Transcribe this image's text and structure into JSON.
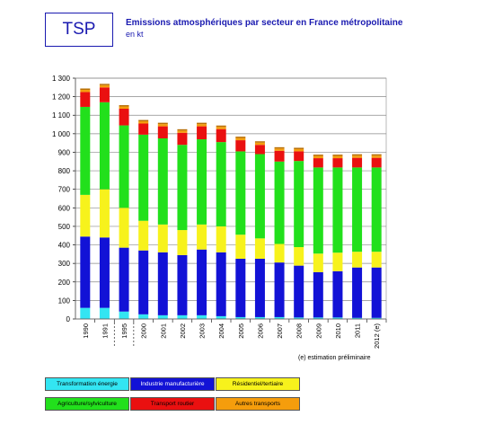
{
  "header": {
    "tsp_label": "TSP",
    "title": "Emissions atmosphériques par secteur en France métropolitaine",
    "subtitle": "en kt"
  },
  "note": "(e) estimation préliminaire",
  "colors": {
    "transformation": "#33e5f2",
    "industrie": "#1212d6",
    "residentiel": "#f7f21c",
    "agriculture": "#22e01c",
    "transport_routier": "#ea1010",
    "autres": "#f59d0c"
  },
  "legend": [
    {
      "label": "Transformation énergie",
      "color": "#33e5f2",
      "text_color": "#000000"
    },
    {
      "label": "Industrie manufacturière",
      "color": "#1212d6",
      "text_color": "#ffffff"
    },
    {
      "label": "Résidentiel/tertiaire",
      "color": "#f7f21c",
      "text_color": "#000000"
    },
    {
      "label": "Agriculture/sylviculture",
      "color": "#22e01c",
      "text_color": "#000000"
    },
    {
      "label": "Transport routier",
      "color": "#ea1010",
      "text_color": "#000000"
    },
    {
      "label": "Autres transports",
      "color": "#f59d0c",
      "text_color": "#000000"
    }
  ],
  "chart_data": {
    "type": "bar",
    "stacked": true,
    "categories": [
      "1990",
      "1991",
      "1995",
      "2000",
      "2001",
      "2002",
      "2003",
      "2004",
      "2005",
      "2006",
      "2007",
      "2008",
      "2009",
      "2010",
      "2011",
      "2012 (e)"
    ],
    "ylim": [
      0,
      1300
    ],
    "yticks": [
      0,
      100,
      200,
      300,
      400,
      500,
      600,
      700,
      800,
      900,
      1000,
      1100,
      1200,
      1300
    ],
    "ytick_labels": [
      "0",
      "100",
      "200",
      "300",
      "400",
      "500",
      "600",
      "700",
      "800",
      "900",
      "1 000",
      "1 100",
      "1 200",
      "1 300"
    ],
    "grid": true,
    "legend_position": "bottom",
    "series": [
      {
        "name": "Transformation énergie",
        "color": "#33e5f2",
        "values": [
          60,
          60,
          40,
          25,
          20,
          20,
          20,
          15,
          10,
          10,
          10,
          8,
          8,
          8,
          6,
          6
        ]
      },
      {
        "name": "Industrie manufacturière",
        "color": "#1212d6",
        "values": [
          385,
          380,
          345,
          345,
          340,
          325,
          355,
          345,
          315,
          315,
          295,
          280,
          245,
          250,
          272,
          272
        ]
      },
      {
        "name": "Résidentiel/tertiaire",
        "color": "#f7f21c",
        "values": [
          225,
          260,
          215,
          160,
          150,
          135,
          135,
          140,
          130,
          110,
          100,
          100,
          100,
          100,
          85,
          85
        ]
      },
      {
        "name": "Agriculture/sylviculture",
        "color": "#22e01c",
        "values": [
          475,
          470,
          445,
          465,
          465,
          460,
          460,
          455,
          450,
          455,
          445,
          465,
          465,
          460,
          455,
          455
        ]
      },
      {
        "name": "Transport routier",
        "color": "#ea1010",
        "values": [
          80,
          80,
          90,
          60,
          65,
          65,
          70,
          70,
          60,
          50,
          58,
          52,
          50,
          50,
          52,
          52
        ]
      },
      {
        "name": "Autres transports",
        "color": "#f59d0c",
        "values": [
          12,
          12,
          12,
          12,
          12,
          12,
          12,
          12,
          12,
          12,
          12,
          12,
          12,
          12,
          12,
          12
        ]
      }
    ]
  }
}
